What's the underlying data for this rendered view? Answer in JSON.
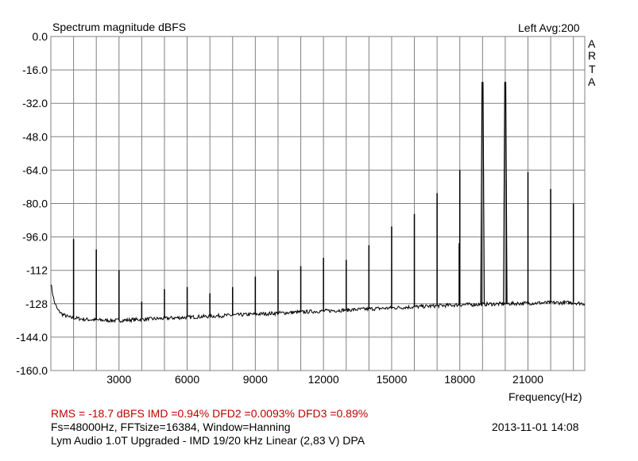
{
  "chart_data": {
    "type": "line",
    "title": "Spectrum magnitude dBFS",
    "channel_info": "Left  Avg:200",
    "brand_letters": [
      "A",
      "R",
      "T",
      "A"
    ],
    "xlabel": "Frequency(Hz)",
    "ylabel": "",
    "xlim": [
      0,
      23500
    ],
    "ylim": [
      -160,
      0
    ],
    "x_ticks": [
      {
        "value": 3000,
        "label": "3000"
      },
      {
        "value": 6000,
        "label": "6000"
      },
      {
        "value": 9000,
        "label": "9000"
      },
      {
        "value": 12000,
        "label": "12000"
      },
      {
        "value": 15000,
        "label": "15000"
      },
      {
        "value": 18000,
        "label": "18000"
      },
      {
        "value": 21000,
        "label": "21000"
      }
    ],
    "x_grid": [
      1000,
      2000,
      3000,
      4000,
      5000,
      6000,
      7000,
      8000,
      9000,
      10000,
      11000,
      12000,
      13000,
      14000,
      15000,
      16000,
      17000,
      18000,
      19000,
      20000,
      21000,
      22000,
      23000
    ],
    "y_ticks": [
      {
        "value": 0,
        "label": "0.0"
      },
      {
        "value": -16,
        "label": "-16.0"
      },
      {
        "value": -32,
        "label": "-32.0"
      },
      {
        "value": -48,
        "label": "-48.0"
      },
      {
        "value": -64,
        "label": "-64.0"
      },
      {
        "value": -80,
        "label": "-80.0"
      },
      {
        "value": -96,
        "label": "-96.0"
      },
      {
        "value": -112,
        "label": "-112"
      },
      {
        "value": -128,
        "label": "-128"
      },
      {
        "value": -144,
        "label": "-144.0"
      },
      {
        "value": -160,
        "label": "-160.0"
      }
    ],
    "grid": true,
    "noise_floor": [
      [
        0,
        -118
      ],
      [
        60,
        -122
      ],
      [
        150,
        -127
      ],
      [
        300,
        -131
      ],
      [
        500,
        -133
      ],
      [
        800,
        -134.5
      ],
      [
        1500,
        -135.5
      ],
      [
        2500,
        -136
      ],
      [
        3000,
        -136
      ],
      [
        4000,
        -135.5
      ],
      [
        6000,
        -134.5
      ],
      [
        8000,
        -133.5
      ],
      [
        10000,
        -132.5
      ],
      [
        12000,
        -131.5
      ],
      [
        14000,
        -130.5
      ],
      [
        16000,
        -129.5
      ],
      [
        18000,
        -128.5
      ],
      [
        20000,
        -128
      ],
      [
        22000,
        -127.5
      ],
      [
        23000,
        -127.5
      ],
      [
        23500,
        -128
      ]
    ],
    "peaks": [
      {
        "x": 1000,
        "y": -97
      },
      {
        "x": 2000,
        "y": -102
      },
      {
        "x": 3000,
        "y": -112
      },
      {
        "x": 4000,
        "y": -127
      },
      {
        "x": 5000,
        "y": -121
      },
      {
        "x": 6000,
        "y": -120
      },
      {
        "x": 7000,
        "y": -123
      },
      {
        "x": 8000,
        "y": -120
      },
      {
        "x": 9000,
        "y": -115
      },
      {
        "x": 10000,
        "y": -112
      },
      {
        "x": 11000,
        "y": -110
      },
      {
        "x": 12000,
        "y": -106
      },
      {
        "x": 13000,
        "y": -107
      },
      {
        "x": 14000,
        "y": -100
      },
      {
        "x": 15000,
        "y": -91
      },
      {
        "x": 16000,
        "y": -85
      },
      {
        "x": 17000,
        "y": -75
      },
      {
        "x": 18000,
        "y": -64
      },
      {
        "x": 19000,
        "y": -22
      },
      {
        "x": 20000,
        "y": -22
      },
      {
        "x": 21000,
        "y": -65
      },
      {
        "x": 22000,
        "y": -73
      },
      {
        "x": 23000,
        "y": -80
      }
    ],
    "secondary_peaks": [
      {
        "x": 18000,
        "y": -99
      },
      {
        "x": 18990,
        "y": -62
      },
      {
        "x": 20010,
        "y": -69
      }
    ]
  },
  "info": {
    "measurement": "RMS =  -18.7 dBFS   IMD =0.94%  DFD2 =0.0093%  DFD3 =0.89%",
    "settings": "Fs=48000Hz, FFTsize=16384, Window=Hanning",
    "datetime": "2013-11-01  14:08",
    "description": "Lym Audio 1.0T Upgraded - IMD 19/20 kHz Linear (2,83 V)     DPA"
  },
  "colors": {
    "grid": "#808080",
    "frame": "#808080",
    "trace": "#000000",
    "measurement_text": "#c00000"
  }
}
